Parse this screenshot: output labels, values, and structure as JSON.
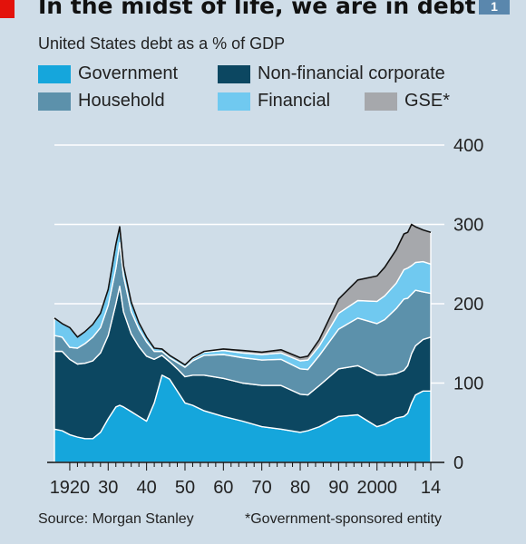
{
  "chart_data": {
    "type": "area",
    "stacked": true,
    "title": "In the midst of life, we are in debt",
    "subtitle": "United States debt as a % of GDP",
    "badge": "1",
    "xlabel": "",
    "ylabel": "",
    "xlim": [
      1916,
      2014
    ],
    "ylim": [
      0,
      400
    ],
    "yticks": [
      0,
      100,
      200,
      300,
      400
    ],
    "xtick_labels": [
      "1920",
      "30",
      "40",
      "50",
      "60",
      "70",
      "80",
      "90",
      "2000",
      "14"
    ],
    "xtick_values": [
      1920,
      1930,
      1940,
      1950,
      1960,
      1970,
      1980,
      1990,
      2000,
      2014
    ],
    "grid": "horizontal",
    "y_axis_side": "right",
    "x": [
      1916,
      1918,
      1920,
      1922,
      1924,
      1926,
      1928,
      1930,
      1932,
      1933,
      1934,
      1936,
      1938,
      1940,
      1942,
      1944,
      1946,
      1948,
      1950,
      1952,
      1955,
      1960,
      1965,
      1970,
      1975,
      1980,
      1982,
      1985,
      1990,
      1995,
      2000,
      2002,
      2005,
      2007,
      2008,
      2009,
      2010,
      2012,
      2014
    ],
    "series": [
      {
        "name": "Government",
        "color": "#15a6dc",
        "values": [
          42,
          40,
          35,
          32,
          30,
          30,
          38,
          55,
          70,
          72,
          70,
          64,
          58,
          52,
          75,
          110,
          105,
          90,
          75,
          72,
          65,
          58,
          52,
          45,
          42,
          38,
          40,
          45,
          58,
          60,
          45,
          48,
          56,
          58,
          62,
          75,
          85,
          90,
          90
        ]
      },
      {
        "name": "Non-financial corporate",
        "color": "#0c4761",
        "values": [
          98,
          100,
          95,
          92,
          95,
          98,
          100,
          105,
          130,
          150,
          120,
          98,
          88,
          82,
          55,
          25,
          22,
          28,
          33,
          38,
          45,
          48,
          48,
          52,
          55,
          48,
          45,
          52,
          60,
          62,
          65,
          62,
          56,
          58,
          60,
          62,
          62,
          65,
          68
        ]
      },
      {
        "name": "Household",
        "color": "#5c91ab",
        "values": [
          20,
          18,
          15,
          20,
          25,
          30,
          32,
          38,
          45,
          55,
          45,
          28,
          22,
          18,
          10,
          5,
          5,
          8,
          12,
          18,
          25,
          30,
          32,
          32,
          33,
          32,
          32,
          38,
          50,
          60,
          65,
          70,
          82,
          90,
          85,
          75,
          70,
          60,
          55
        ]
      },
      {
        "name": "Financial",
        "color": "#70c9f0",
        "values": [
          22,
          17,
          25,
          14,
          15,
          16,
          18,
          20,
          30,
          20,
          13,
          12,
          8,
          6,
          4,
          3,
          3,
          3,
          3,
          3,
          4,
          5,
          6,
          7,
          8,
          10,
          12,
          12,
          20,
          22,
          28,
          30,
          32,
          37,
          38,
          36,
          35,
          38,
          37
        ]
      },
      {
        "name": "GSE*",
        "color": "#a6a8ac",
        "values": [
          0,
          0,
          0,
          0,
          0,
          0,
          0,
          0,
          0,
          0,
          0,
          0,
          0,
          0,
          0,
          0,
          0,
          0,
          0,
          1,
          1,
          2,
          3,
          3,
          4,
          4,
          5,
          8,
          18,
          26,
          32,
          36,
          42,
          45,
          45,
          52,
          45,
          40,
          40
        ]
      }
    ],
    "source": "Source: Morgan Stanley",
    "footnote": "*Government-sponsored entity"
  }
}
